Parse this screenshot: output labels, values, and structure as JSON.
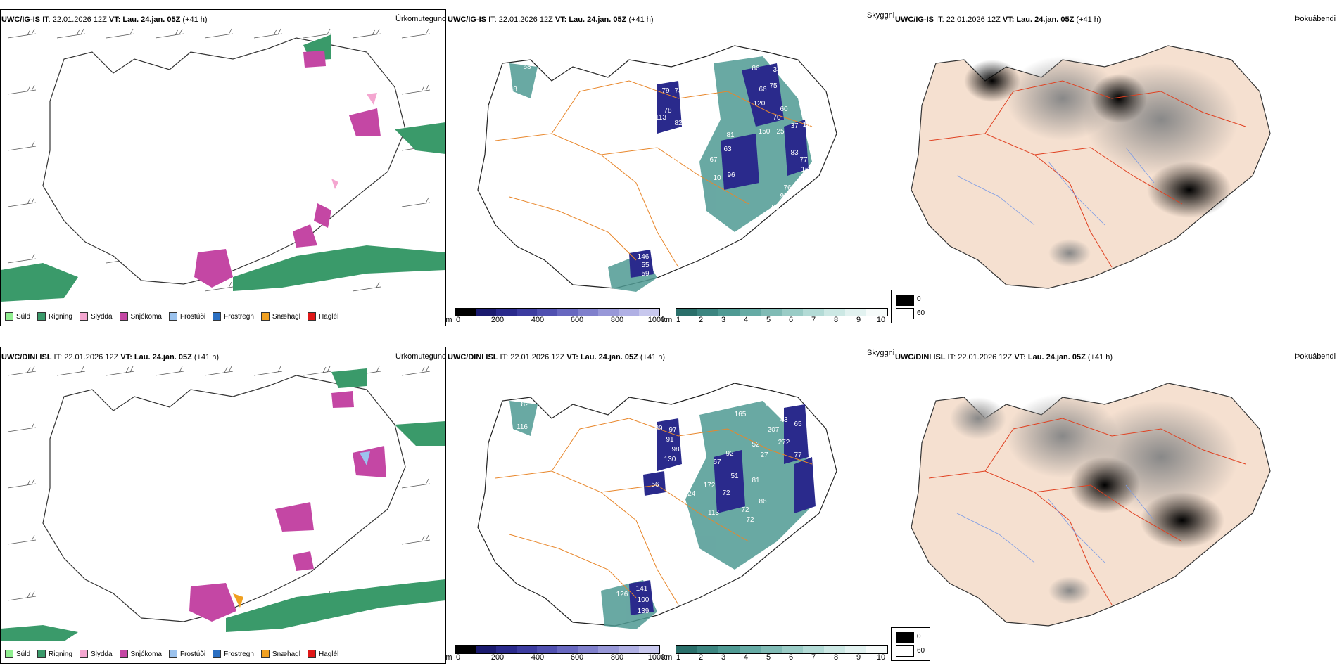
{
  "rows": [
    {
      "precip": {
        "model": "UWC/IG-IS",
        "it": " IT: 22.01.2026 12Z ",
        "vt_label": "VT:",
        "vt": " Lau. 24.jan. 05Z",
        "lead": " (+41 h)",
        "corner": "Úrkomutegund"
      },
      "vis": {
        "model": "UWC/IG-IS",
        "it": " IT: 22.01.2026 12Z ",
        "vt_label": "VT:",
        "vt": " Lau. 24.jan. 05Z",
        "lead": " (+41 h)",
        "corner": "Skyggni",
        "labels": [
          "68",
          "8",
          "79",
          "73",
          "78",
          "113",
          "82",
          "95",
          "81",
          "63",
          "67",
          "86",
          "10",
          "96",
          "55",
          "146",
          "59",
          "60",
          "70",
          "37",
          "104",
          "66",
          "75",
          "120",
          "150",
          "25",
          "83",
          "77",
          "16",
          "95",
          "99",
          "88",
          "34",
          "76"
        ]
      },
      "fog": {
        "model": "UWC/IG-IS",
        "it": " IT: 22.01.2026 12Z ",
        "vt_label": "VT:",
        "vt": " Lau. 24.jan. 05Z",
        "lead": " (+41 h)",
        "corner": "Þokuábendi"
      }
    },
    {
      "precip": {
        "model": "UWC/DINI ISL",
        "it": " IT: 22.01.2026 12Z ",
        "vt_label": "VT:",
        "vt": " Lau. 24.jan. 05Z",
        "lead": " (+41 h)",
        "corner": "Úrkomutegund"
      },
      "vis": {
        "model": "UWC/DINI ISL",
        "it": " IT: 22.01.2026 12Z ",
        "vt_label": "VT:",
        "vt": " Lau. 24.jan. 05Z",
        "lead": " (+41 h)",
        "corner": "Skyggni",
        "labels": [
          "82",
          "116",
          "89",
          "97",
          "91",
          "98",
          "130",
          "56",
          "73",
          "67",
          "92",
          "124",
          "172",
          "72",
          "51",
          "81",
          "86",
          "72",
          "72",
          "43",
          "207",
          "52",
          "27",
          "272",
          "65",
          "66",
          "165",
          "113",
          "126",
          "141",
          "100",
          "139",
          "77"
        ]
      },
      "fog": {
        "model": "UWC/DINI ISL",
        "it": " IT: 22.01.2026 12Z ",
        "vt_label": "VT:",
        "vt": " Lau. 24.jan. 05Z",
        "lead": " (+41 h)",
        "corner": "Þokuábendi"
      }
    }
  ],
  "precip_legend": [
    {
      "label": "Súld",
      "color": "#90ee90"
    },
    {
      "label": "Rigning",
      "color": "#3a9a6a"
    },
    {
      "label": "Slydda",
      "color": "#f4a6d0"
    },
    {
      "label": "Snjókoma",
      "color": "#c447a4"
    },
    {
      "label": "Frostúði",
      "color": "#9cc3ee"
    },
    {
      "label": "Frostregn",
      "color": "#2b6fc2"
    },
    {
      "label": "Snæhagl",
      "color": "#f0a020"
    },
    {
      "label": "Haglél",
      "color": "#e01818"
    }
  ],
  "ceiling_bar": {
    "unit": "m",
    "ticks": [
      "0",
      "200",
      "400",
      "600",
      "800",
      "1000"
    ],
    "colors": [
      "#000000",
      "#1a1a6e",
      "#2a2a8c",
      "#3c3ca0",
      "#5050b0",
      "#6868c0",
      "#8080cc",
      "#9898d8",
      "#b0b0e4",
      "#c8c8ee"
    ]
  },
  "visibility_bar": {
    "unit": "km",
    "ticks": [
      "1",
      "2",
      "3",
      "4",
      "5",
      "6",
      "7",
      "8",
      "9",
      "10"
    ],
    "colors": [
      "#2a6f6a",
      "#3c8580",
      "#4f9a93",
      "#66aba5",
      "#80bbb5",
      "#9accc6",
      "#b3dbd6",
      "#cce8e4",
      "#e2f2f0",
      "#f6fbfa"
    ]
  },
  "fog_legend": {
    "high": "0",
    "low": "60",
    "high_color": "#000000",
    "low_color": "#ffffff"
  },
  "colors": {
    "land_fill": "#f5e0d0",
    "roads": "#e8862a",
    "roads_red": "#e04020",
    "rivers": "#7a9ae6"
  }
}
